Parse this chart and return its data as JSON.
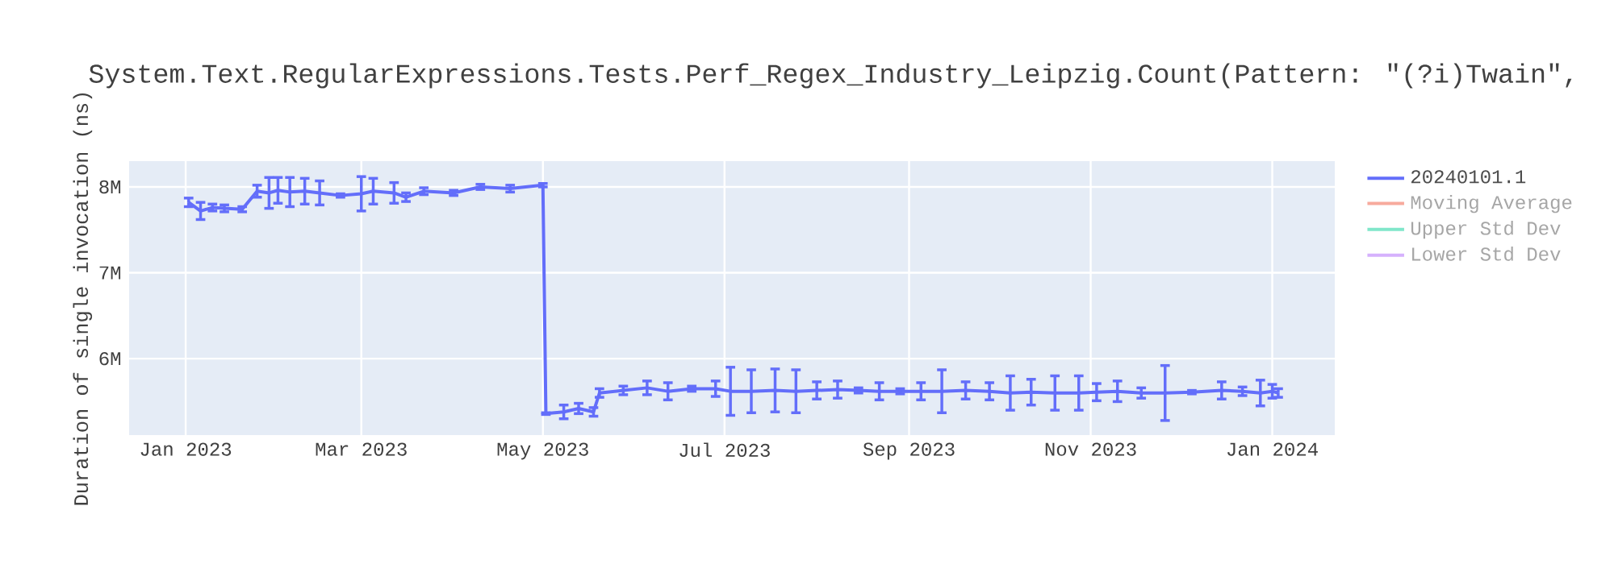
{
  "chart_data": {
    "type": "line",
    "title": "System.Text.RegularExpressions.Tests.Perf_Regex_Industry_Leipzig.Count(Pattern: \"(?i)Twain\",",
    "ylabel": "Duration of single invocation (ns)",
    "xlim": [
      "2022-12-13",
      "2024-01-22"
    ],
    "ylim": [
      5110000,
      8300000
    ],
    "xticks": [
      {
        "value": "2023-01-01",
        "label": "Jan 2023"
      },
      {
        "value": "2023-03-01",
        "label": "Mar 2023"
      },
      {
        "value": "2023-05-01",
        "label": "May 2023"
      },
      {
        "value": "2023-07-01",
        "label": "Jul 2023"
      },
      {
        "value": "2023-09-01",
        "label": "Sep 2023"
      },
      {
        "value": "2023-11-01",
        "label": "Nov 2023"
      },
      {
        "value": "2024-01-01",
        "label": "Jan 2024"
      }
    ],
    "yticks": [
      {
        "value": 6000000,
        "label": "6M"
      },
      {
        "value": 7000000,
        "label": "7M"
      },
      {
        "value": 8000000,
        "label": "8M"
      }
    ],
    "grid": true,
    "legend": "right",
    "marker": "none",
    "series": [
      {
        "name": "20240101.1",
        "color": "#636efa",
        "x": [
          "2023-01-02",
          "2023-01-06",
          "2023-01-10",
          "2023-01-14",
          "2023-01-20",
          "2023-01-25",
          "2023-01-29",
          "2023-02-01",
          "2023-02-05",
          "2023-02-10",
          "2023-02-15",
          "2023-02-22",
          "2023-03-01",
          "2023-03-05",
          "2023-03-12",
          "2023-03-16",
          "2023-03-22",
          "2023-04-01",
          "2023-04-10",
          "2023-04-20",
          "2023-05-01",
          "2023-05-02",
          "2023-05-08",
          "2023-05-13",
          "2023-05-18",
          "2023-05-20",
          "2023-05-28",
          "2023-06-05",
          "2023-06-12",
          "2023-06-20",
          "2023-06-28",
          "2023-07-03",
          "2023-07-10",
          "2023-07-18",
          "2023-07-25",
          "2023-08-01",
          "2023-08-08",
          "2023-08-15",
          "2023-08-22",
          "2023-08-29",
          "2023-09-05",
          "2023-09-12",
          "2023-09-20",
          "2023-09-28",
          "2023-10-05",
          "2023-10-12",
          "2023-10-20",
          "2023-10-28",
          "2023-11-03",
          "2023-11-10",
          "2023-11-18",
          "2023-11-26",
          "2023-12-05",
          "2023-12-15",
          "2023-12-22",
          "2023-12-28",
          "2024-01-01",
          "2024-01-03"
        ],
        "values": [
          7820000,
          7720000,
          7760000,
          7750000,
          7740000,
          7950000,
          7930000,
          7960000,
          7940000,
          7950000,
          7930000,
          7900000,
          7920000,
          7950000,
          7930000,
          7880000,
          7950000,
          7930000,
          8000000,
          7980000,
          8020000,
          5360000,
          5380000,
          5420000,
          5380000,
          5600000,
          5630000,
          5660000,
          5620000,
          5650000,
          5650000,
          5620000,
          5620000,
          5630000,
          5620000,
          5630000,
          5640000,
          5630000,
          5620000,
          5620000,
          5620000,
          5620000,
          5630000,
          5620000,
          5600000,
          5610000,
          5600000,
          5600000,
          5610000,
          5620000,
          5600000,
          5600000,
          5610000,
          5630000,
          5620000,
          5600000,
          5620000,
          5600000
        ],
        "errors": [
          50000,
          100000,
          40000,
          40000,
          30000,
          70000,
          180000,
          150000,
          170000,
          150000,
          140000,
          20000,
          200000,
          150000,
          120000,
          50000,
          40000,
          30000,
          30000,
          40000,
          20000,
          10000,
          80000,
          60000,
          50000,
          50000,
          50000,
          80000,
          100000,
          30000,
          90000,
          280000,
          250000,
          250000,
          250000,
          100000,
          100000,
          30000,
          100000,
          30000,
          100000,
          250000,
          100000,
          100000,
          200000,
          150000,
          200000,
          200000,
          100000,
          120000,
          60000,
          320000,
          20000,
          100000,
          50000,
          150000,
          80000,
          50000
        ]
      },
      {
        "name": "Moving Average",
        "color": "#f7aa9d"
      },
      {
        "name": "Upper Std Dev",
        "color": "#80e6ca"
      },
      {
        "name": "Lower Std Dev",
        "color": "#d5b1fd"
      }
    ]
  }
}
